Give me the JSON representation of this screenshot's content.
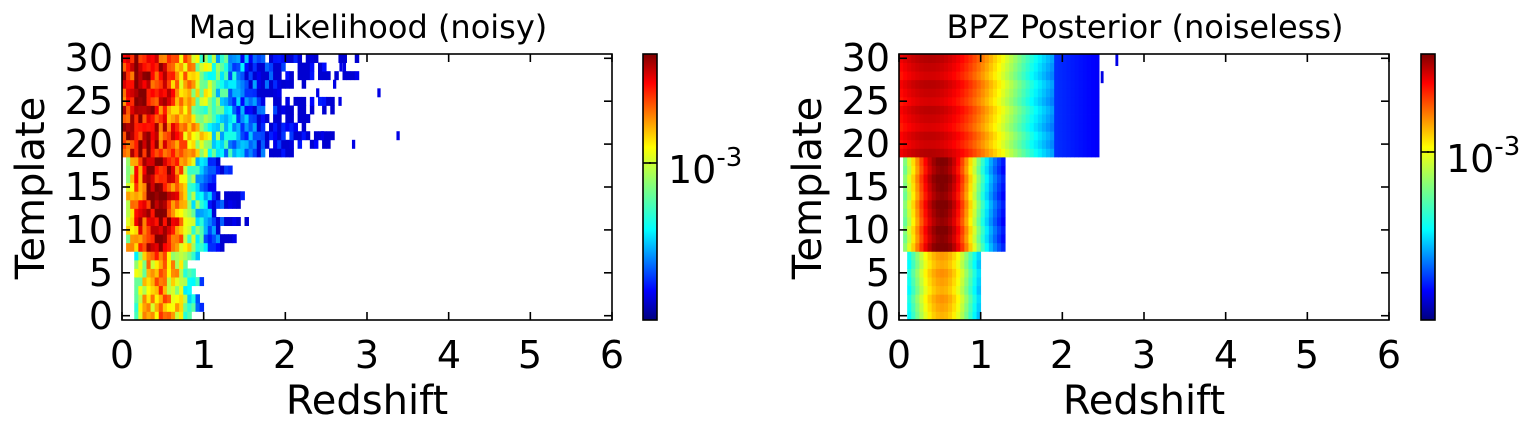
{
  "chart_data": [
    {
      "type": "heatmap",
      "title": "Mag Likelihood (noisy)",
      "xlabel": "Redshift",
      "ylabel": "Template",
      "xlim": [
        0,
        6
      ],
      "ylim": [
        -0.5,
        30.5
      ],
      "xticks": [
        "0",
        "1",
        "2",
        "3",
        "4",
        "5",
        "6"
      ],
      "yticks": [
        "0",
        "5",
        "10",
        "15",
        "20",
        "25",
        "30"
      ],
      "colormap": "jet",
      "colorbar": {
        "tick_base": "10",
        "tick_exponent": "-3"
      },
      "structure": "noisy per-cell density; blocks: templates 0-7 spread z 0.15-1.05 peak ~0.45; templates 8-18 spread z 0.05-1.55 peak ~0.4 (most intense); templates 19-30 spread z 0.0-3.5 peak ~0.2, scattered sparse cells up to z ~3.55"
    },
    {
      "type": "heatmap",
      "title": "BPZ Posterior (noiseless)",
      "xlabel": "Redshift",
      "ylabel": "Template",
      "xlim": [
        0,
        6
      ],
      "ylim": [
        -0.5,
        30.5
      ],
      "xticks": [
        "0",
        "1",
        "2",
        "3",
        "4",
        "5",
        "6"
      ],
      "yticks": [
        "0",
        "5",
        "10",
        "15",
        "20",
        "25",
        "30"
      ],
      "colormap": "jet",
      "colorbar": {
        "tick_base": "10",
        "tick_exponent": "-3"
      },
      "structure": "smooth block structure; templates 0-7 filled z 0.1-1.0 peak ~0.5; templates 8-18 filled z 0.05-1.3 peak ~0.5 (dark red); templates 19-30 filled z 0.0-2.4 peak ~0.35, sparse cells near z 2.5-2.65 at top"
    }
  ],
  "colors": {
    "colormap_stops": [
      "#00007f",
      "#0000ff",
      "#007fff",
      "#00ffff",
      "#7fff7f",
      "#ffff00",
      "#ff7f00",
      "#ff0000",
      "#7f0000"
    ]
  }
}
